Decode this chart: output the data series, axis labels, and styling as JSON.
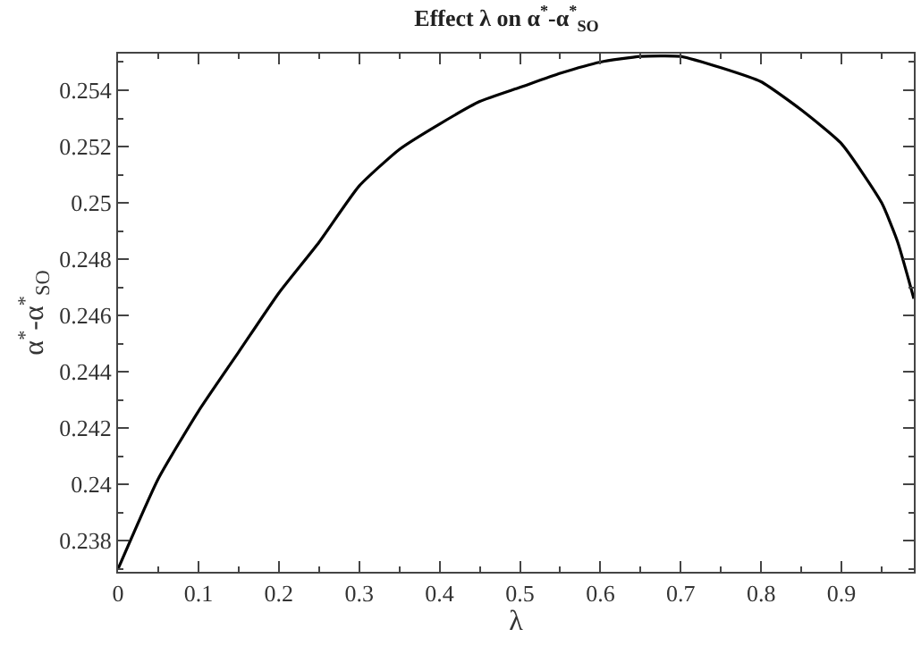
{
  "chart_data": {
    "type": "line",
    "title": "Effect λ on α$^{*}$-α$^{*}$$_{SO}$",
    "xlabel": "λ",
    "ylabel": "α$^{*}$-α$^{*}$$_{SO}$",
    "x": [
      0,
      0.05,
      0.1,
      0.15,
      0.2,
      0.25,
      0.3,
      0.35,
      0.4,
      0.45,
      0.5,
      0.55,
      0.6,
      0.65,
      0.7,
      0.75,
      0.8,
      0.85,
      0.9,
      0.95,
      0.97,
      0.99
    ],
    "series": [
      {
        "color": "#000000",
        "values": [
          0.237,
          0.2402,
          0.2426,
          0.2447,
          0.2468,
          0.2486,
          0.2506,
          0.2519,
          0.2528,
          0.2536,
          0.2541,
          0.2546,
          0.255,
          0.2552,
          0.2552,
          0.2548,
          0.2543,
          0.2533,
          0.2521,
          0.25,
          0.2486,
          0.2466
        ]
      }
    ],
    "xlim": [
      0,
      0.99
    ],
    "xticks": [
      0,
      0.1,
      0.2,
      0.3,
      0.4,
      0.5,
      0.6,
      0.7,
      0.8,
      0.9
    ],
    "ylim": [
      0.2369,
      0.2553
    ],
    "yticks": [
      0.238,
      0.24,
      0.242,
      0.244,
      0.246,
      0.248,
      0.25,
      0.252,
      0.254
    ],
    "legend": false,
    "marker": "none",
    "line_style": "solid"
  }
}
